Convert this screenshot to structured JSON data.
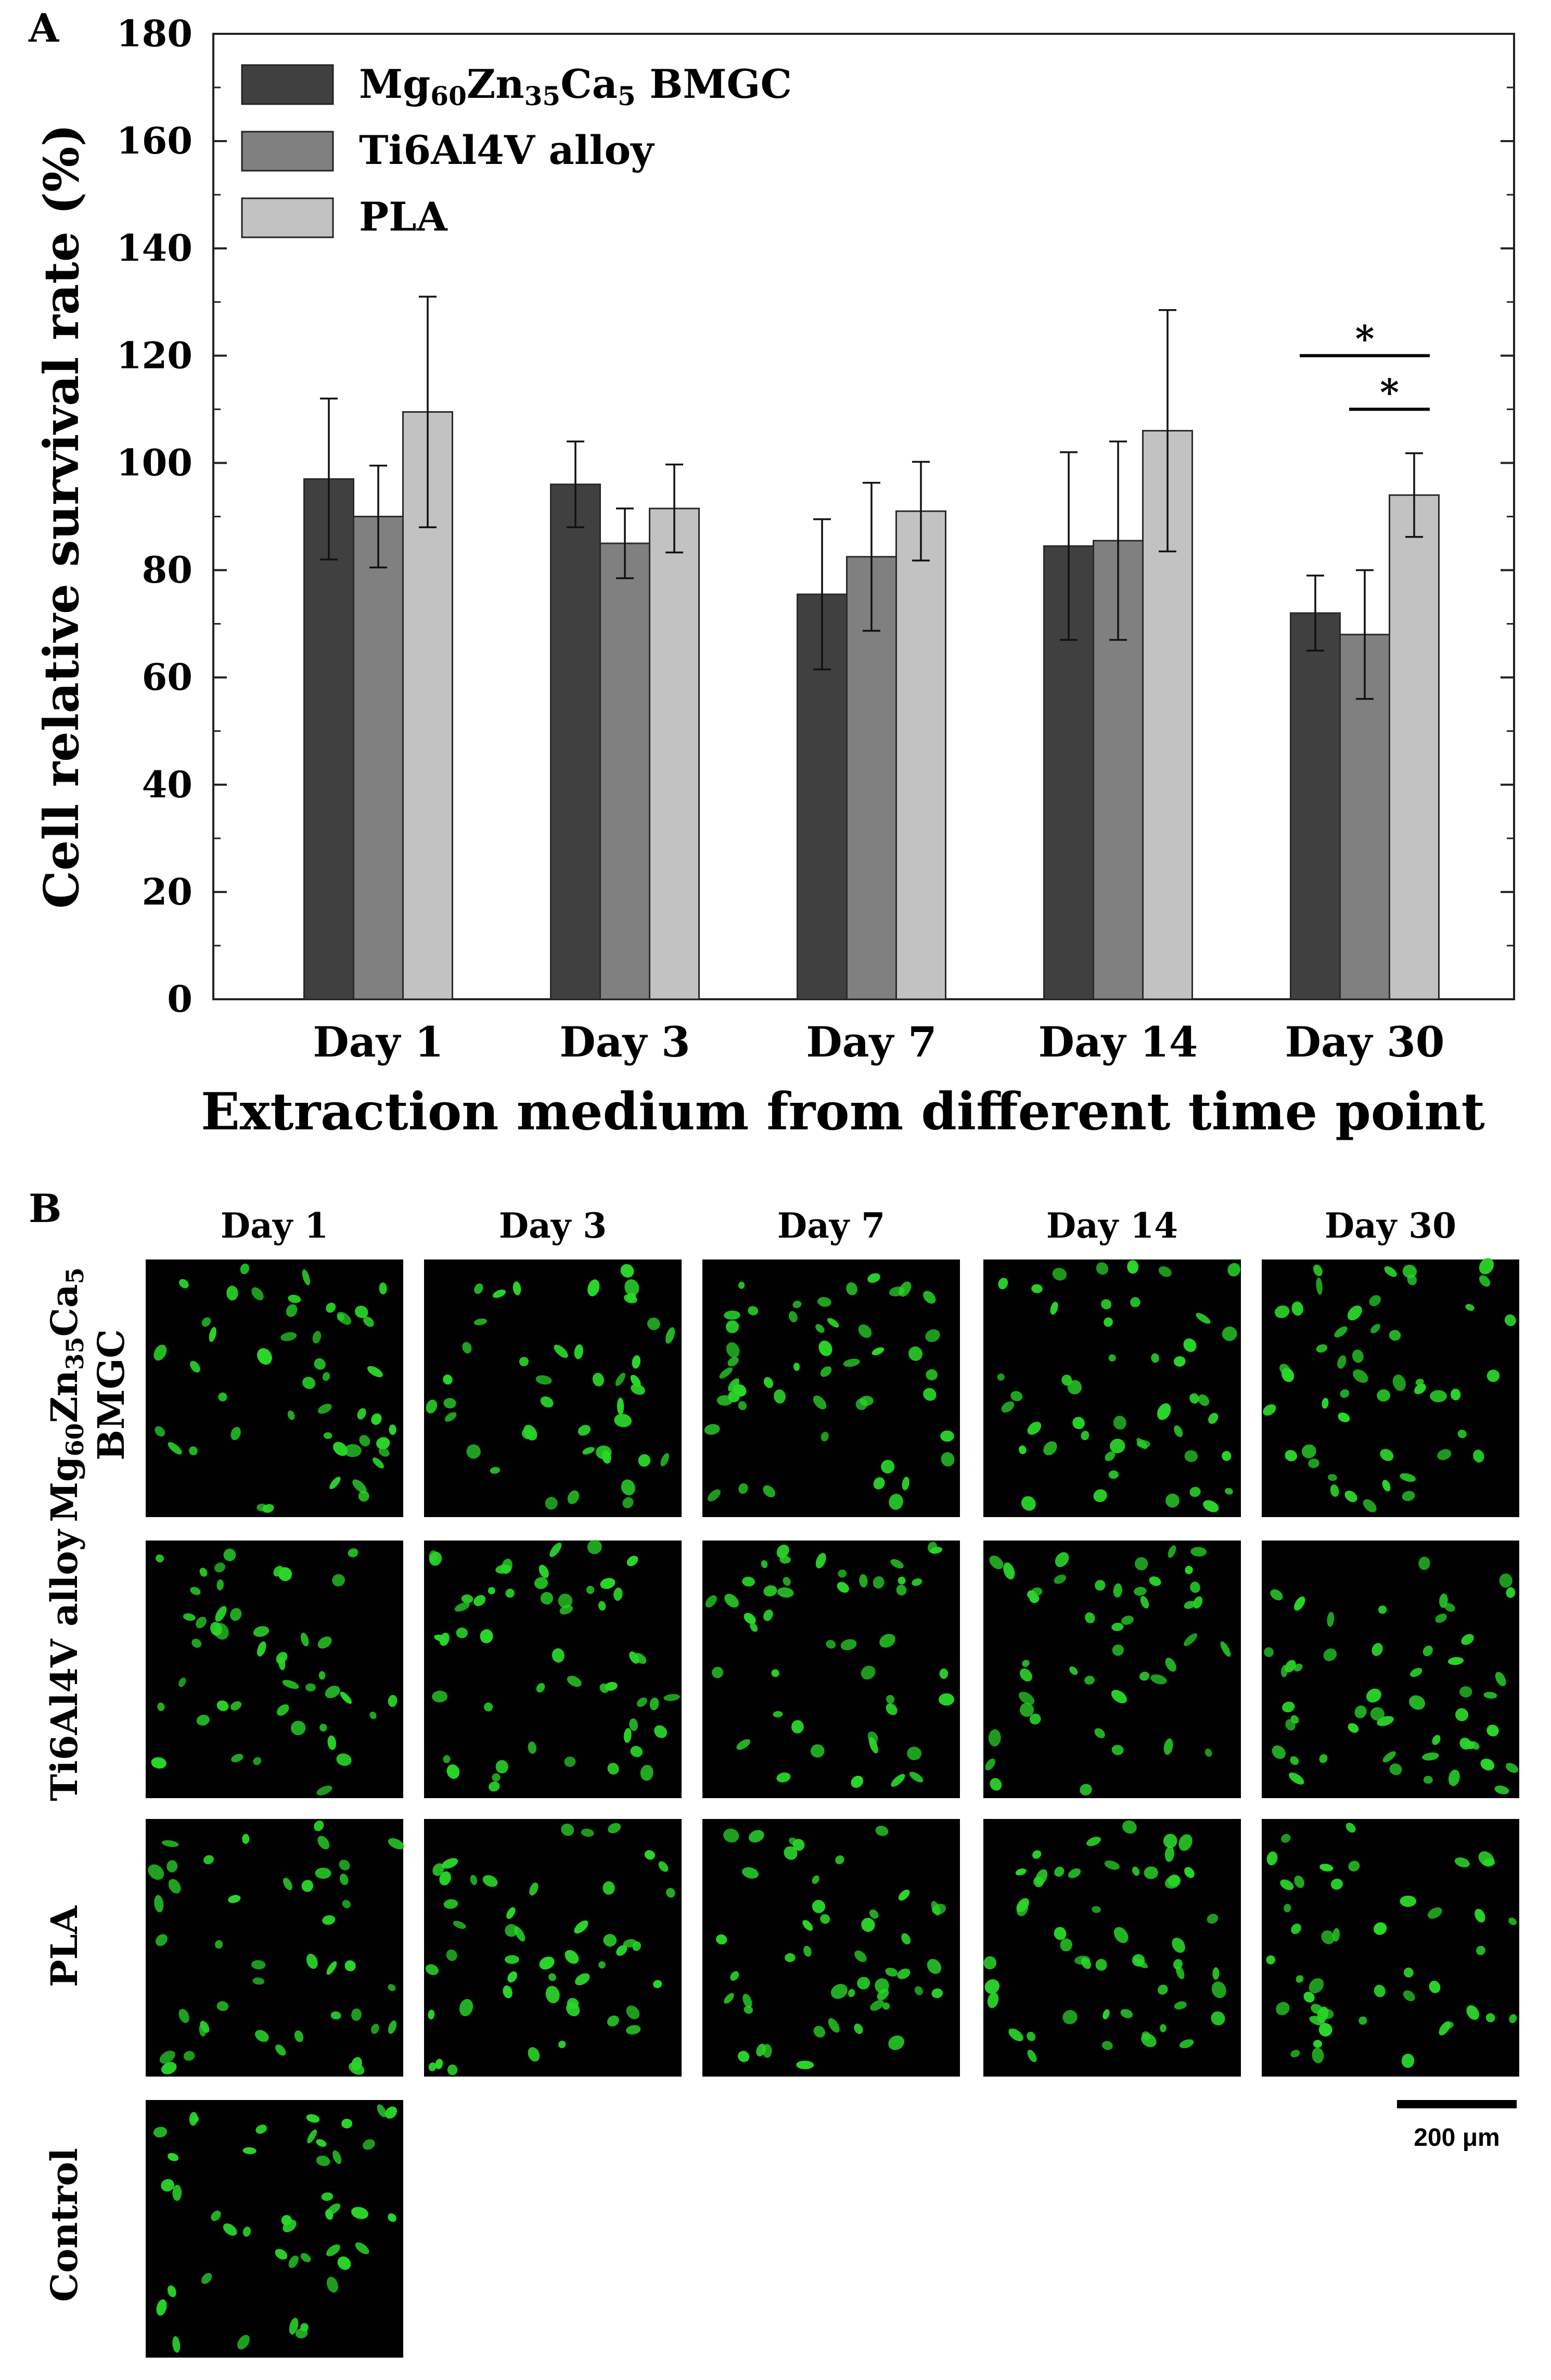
{
  "panel_a": {
    "label": "A",
    "chart_data": {
      "type": "bar",
      "categories": [
        "Day 1",
        "Day 3",
        "Day 7",
        "Day 14",
        "Day 30"
      ],
      "series": [
        {
          "name": "Mg60Zn35Ca5 BMGC",
          "name_parts": {
            "base": "Mg",
            "sub1": "60",
            "mid1": "Zn",
            "sub2": "35",
            "mid2": "Ca",
            "sub3": "5",
            "tail": " BMGC"
          },
          "values": [
            97,
            96,
            75.5,
            84.5,
            72
          ],
          "errors": [
            15,
            8,
            14,
            17.5,
            7
          ],
          "color": "#404040"
        },
        {
          "name": "Ti6Al4V alloy",
          "values": [
            90,
            85,
            82.5,
            85.5,
            68
          ],
          "errors": [
            9.5,
            6.5,
            13.8,
            18.5,
            12
          ],
          "color": "#808080"
        },
        {
          "name": "PLA",
          "values": [
            109.5,
            91.5,
            91,
            106,
            94
          ],
          "errors": [
            21.5,
            8.2,
            9.2,
            22.5,
            7.8
          ],
          "color": "#c2c2c2"
        }
      ],
      "xlabel": "Extraction medium from different time point",
      "ylabel": "Cell relative survival rate (%)",
      "ylim": [
        0,
        180
      ],
      "yticks": [
        0,
        20,
        40,
        60,
        80,
        100,
        120,
        140,
        160,
        180
      ],
      "legend_position": "top-left",
      "grid": false,
      "annotations": [
        {
          "text": "*",
          "category": "Day 30",
          "from_series": 0,
          "to_series": 2,
          "level": 120
        },
        {
          "text": "*",
          "category": "Day 30",
          "from_series": 1,
          "to_series": 2,
          "level": 110
        }
      ]
    }
  },
  "panel_b": {
    "label": "B",
    "columns": [
      "Day 1",
      "Day 3",
      "Day 7",
      "Day 14",
      "Day 30"
    ],
    "rows": [
      {
        "label_line1": "Mg60Zn35Ca5",
        "label_parts": {
          "base": "Mg",
          "sub1": "60",
          "mid1": "Zn",
          "sub2": "35",
          "mid2": "Ca",
          "sub3": "5"
        },
        "label_line2": "BMGC",
        "cells": 5
      },
      {
        "label_line1": "Ti6Al4V alloy",
        "cells": 5
      },
      {
        "label_line1": "PLA",
        "cells": 5
      },
      {
        "label_line1": "Control",
        "cells": 1
      }
    ],
    "scale_bar": {
      "text": "200 μm"
    },
    "colors": {
      "cell": "#2ad62a",
      "background": "#000000",
      "dead_cell": "#ff3300"
    }
  }
}
